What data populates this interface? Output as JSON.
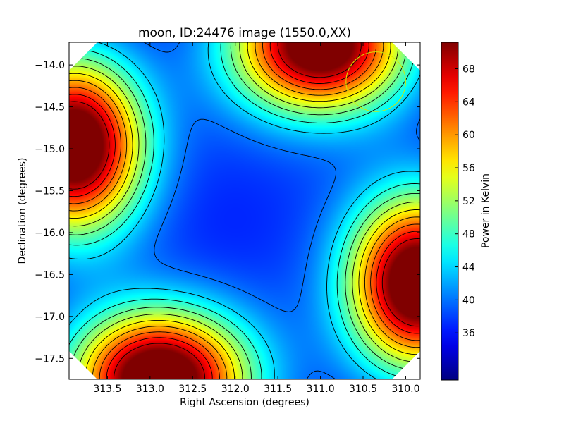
{
  "chart_data": {
    "type": "heatmap",
    "title": "moon, ID:24476 image (1550.0,XX)",
    "xlabel": "Right Ascension (degrees)",
    "ylabel": "Declination (degrees)",
    "xlim": [
      313.95,
      309.83
    ],
    "ylim": [
      -17.75,
      -13.73
    ],
    "x_ticks": [
      "313.5",
      "313.0",
      "312.5",
      "312.0",
      "311.5",
      "311.0",
      "310.5",
      "310.0"
    ],
    "x_tick_values": [
      313.5,
      313.0,
      312.5,
      312.0,
      311.5,
      311.0,
      310.5,
      310.0
    ],
    "y_ticks": [
      "−14.0",
      "−14.5",
      "−15.0",
      "−15.5",
      "−16.0",
      "−16.5",
      "−17.0",
      "−17.5"
    ],
    "y_tick_values": [
      -14.0,
      -14.5,
      -15.0,
      -15.5,
      -16.0,
      -16.5,
      -17.0,
      -17.5
    ],
    "colorbar": {
      "label": "Power in Kelvin",
      "range": [
        30.3,
        71.2
      ],
      "ticks": [
        "36",
        "40",
        "44",
        "48",
        "52",
        "56",
        "60",
        "64",
        "68"
      ],
      "tick_values": [
        36,
        40,
        44,
        48,
        52,
        56,
        60,
        64,
        68
      ],
      "colormap": "jet"
    },
    "field": {
      "baseline": 30.3,
      "components": [
        {
          "ra": 312.1,
          "dec": -15.9,
          "amp": -2.5,
          "sigma_ra": 0.9,
          "sigma_dec": 0.8
        },
        {
          "ra": 313.9,
          "dec": -14.95,
          "amp": 41,
          "sigma_ra": 0.55,
          "sigma_dec": 0.7
        },
        {
          "ra": 311.0,
          "dec": -13.75,
          "amp": 40,
          "sigma_ra": 0.7,
          "sigma_dec": 0.55
        },
        {
          "ra": 309.85,
          "dec": -16.6,
          "amp": 41,
          "sigma_ra": 0.55,
          "sigma_dec": 0.7
        },
        {
          "ra": 312.9,
          "dec": -17.75,
          "amp": 41,
          "sigma_ra": 0.7,
          "sigma_dec": 0.55
        },
        {
          "ra": 312.0,
          "dec": -16.0,
          "amp": 9,
          "sigma_ra": 3.0,
          "sigma_dec": 3.0
        }
      ]
    },
    "contour_levels": [
      32,
      36,
      40,
      44,
      47,
      50,
      53,
      56,
      59,
      62,
      65,
      68
    ],
    "marker": {
      "shape": "circle",
      "ra": 310.35,
      "dec": -14.2,
      "radius_deg": 0.35,
      "color": "#d4e800"
    },
    "masked_corners": true,
    "grid": false
  }
}
